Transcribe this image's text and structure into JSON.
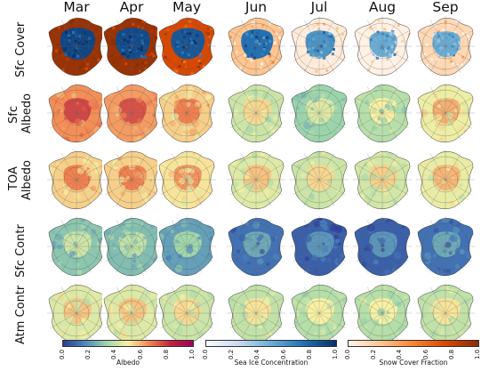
{
  "chart_data": {
    "type": "heatmap",
    "description_units": "panel grid of polar maps; rows are variables, columns are months",
    "columns": [
      "Mar",
      "Apr",
      "May",
      "Jun",
      "Jul",
      "Aug",
      "Sep"
    ],
    "rows": [
      {
        "key": "sfc_cover",
        "label_lines": [
          "Sfc Cover"
        ]
      },
      {
        "key": "sfc_albedo",
        "label_lines": [
          "Sfc",
          "Albedo"
        ]
      },
      {
        "key": "toa_albedo",
        "label_lines": [
          "TOA",
          "Albedo"
        ]
      },
      {
        "key": "sfc_contr",
        "label_lines": [
          "Sfc Contr"
        ]
      },
      {
        "key": "atm_contr",
        "label_lines": [
          "Atm Contr"
        ]
      }
    ],
    "approx_mean_values": {
      "sfc_albedo": [
        0.65,
        0.63,
        0.55,
        0.42,
        0.33,
        0.38,
        0.48
      ],
      "toa_albedo": [
        0.55,
        0.55,
        0.52,
        0.45,
        0.42,
        0.43,
        0.47
      ],
      "sfc_contr": [
        0.3,
        0.28,
        0.22,
        0.12,
        0.08,
        0.08,
        0.12
      ],
      "atm_contr": [
        0.45,
        0.45,
        0.42,
        0.4,
        0.38,
        0.38,
        0.4
      ]
    },
    "approx_sea_ice_concentration": [
      0.92,
      0.9,
      0.85,
      0.75,
      0.6,
      0.5,
      0.5
    ],
    "approx_snow_cover_fraction": [
      0.95,
      0.95,
      0.75,
      0.25,
      0.05,
      0.02,
      0.15
    ],
    "colorbars": [
      {
        "label": "Albedo",
        "ticks": [
          "0.0",
          "0.2",
          "0.4",
          "0.6",
          "0.8",
          "1.0"
        ],
        "range": [
          0,
          1
        ],
        "colors": [
          "#2c3c95",
          "#4b87c0",
          "#9dd6ab",
          "#f8f1a4",
          "#f2834f",
          "#c0213e",
          "#a0005a"
        ]
      },
      {
        "label": "Sea Ice Concentration",
        "ticks": [
          "0.0",
          "0.2",
          "0.4",
          "0.6",
          "0.8",
          "1.0"
        ],
        "range": [
          0,
          1
        ],
        "colors": [
          "#f7fbff",
          "#c6dbef",
          "#6baed6",
          "#2171b5",
          "#08306b"
        ]
      },
      {
        "label": "Snow Cover Fraction",
        "ticks": [
          "0.0",
          "0.2",
          "0.4",
          "0.6",
          "0.8",
          "1.0"
        ],
        "range": [
          0,
          1
        ],
        "colors": [
          "#fff5eb",
          "#fdc590",
          "#f98434",
          "#d94801",
          "#8c2d04"
        ]
      }
    ]
  }
}
